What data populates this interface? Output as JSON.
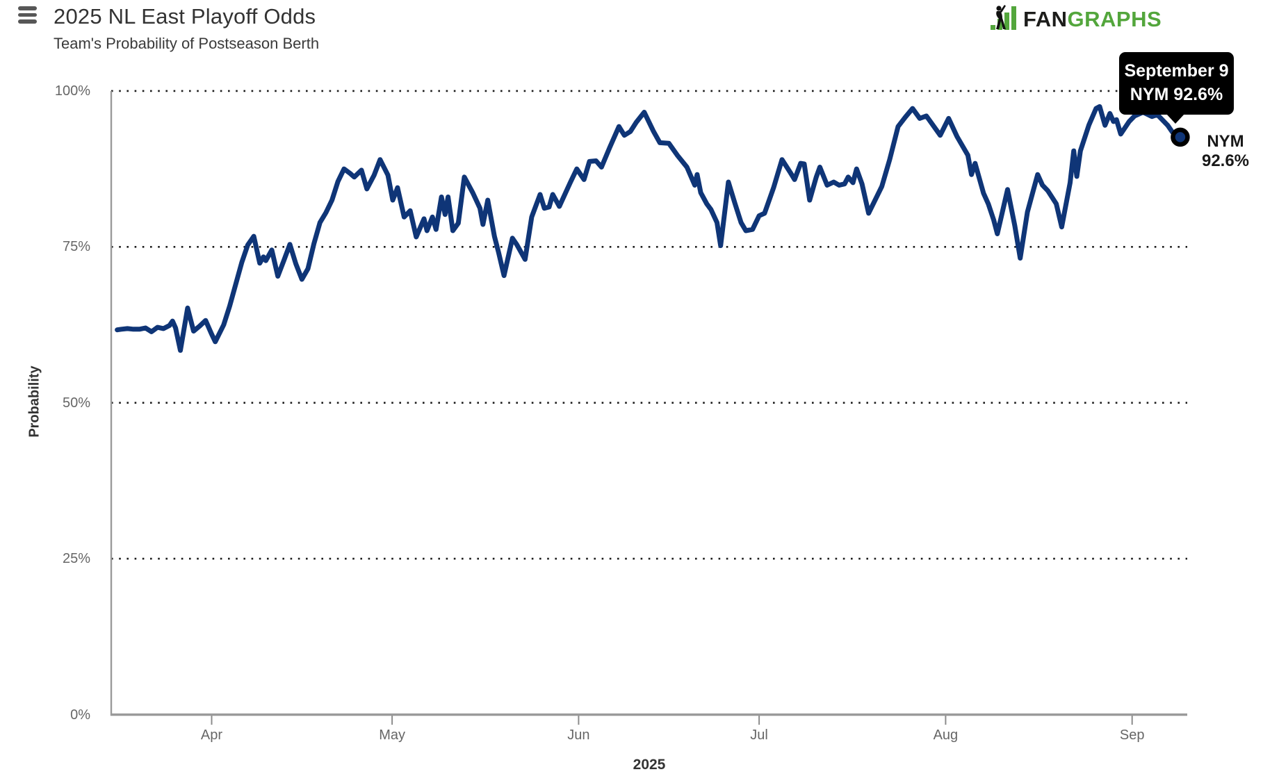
{
  "header": {
    "title": "2025 NL East Playoff Odds",
    "subtitle": "Team's Probability of Postseason Berth"
  },
  "logo": {
    "text_fan": "FAN",
    "text_graphs": "GRAPHS",
    "color_green": "#53a63c",
    "color_black": "#1d1d1b"
  },
  "tooltip": {
    "date": "September 9",
    "value_line": "NYM 92.6%",
    "bg_color": "#000000",
    "text_color": "#ffffff"
  },
  "end_label": {
    "team": "NYM",
    "value": "92.6%"
  },
  "axis": {
    "ylabel": "Probability",
    "xlabel": "2025",
    "yticks": [
      {
        "pct": 100,
        "label": "100%"
      },
      {
        "pct": 75,
        "label": "75%"
      },
      {
        "pct": 50,
        "label": "50%"
      },
      {
        "pct": 25,
        "label": "25%"
      },
      {
        "pct": 0,
        "label": "0%"
      }
    ],
    "xticks": [
      {
        "day": 16,
        "label": "Apr"
      },
      {
        "day": 46,
        "label": "May"
      },
      {
        "day": 77,
        "label": "Jun"
      },
      {
        "day": 107,
        "label": "Jul"
      },
      {
        "day": 138,
        "label": "Aug"
      },
      {
        "day": 169,
        "label": "Sep"
      }
    ]
  },
  "chart_data": {
    "type": "line",
    "title": "2025 NL East Playoff Odds",
    "subtitle": "Team's Probability of Postseason Berth",
    "xlabel": "2025",
    "ylabel": "Probability",
    "ylim": [
      0,
      100
    ],
    "x_unit": "days since 2025-03-16 (day 16 = Apr 1, day 46 = May 1, day 77 = Jun 1, day 107 = Jul 1, day 138 = Aug 1, day 169 = Sep 1, day 177 = Sep 9)",
    "grid": "dotted horizontal gridlines at 25%, 50%, 75%, 100%; solid gray axes at left and bottom",
    "legend": "none (single series, endpoint labeled NYM 92.6%)",
    "line_color": "#0f3577",
    "line_width": 7,
    "marker": {
      "shape": "circle",
      "fill": "#0f3577",
      "ring": "#000000",
      "at_pct": 92.6,
      "at_date": "September 9"
    },
    "series": [
      {
        "name": "NYM",
        "color": "#0f3577",
        "final_date": "September 9",
        "final_value": 92.6,
        "points": [
          [
            0.3,
            61.7
          ],
          [
            1,
            61.8
          ],
          [
            2,
            61.9
          ],
          [
            3,
            61.8
          ],
          [
            4,
            61.8
          ],
          [
            5,
            62.0
          ],
          [
            6,
            61.4
          ],
          [
            7,
            62.1
          ],
          [
            8,
            61.9
          ],
          [
            9,
            62.4
          ],
          [
            9.5,
            63.1
          ],
          [
            10,
            62.0
          ],
          [
            10.8,
            58.4
          ],
          [
            12,
            65.2
          ],
          [
            13,
            61.5
          ],
          [
            14,
            62.3
          ],
          [
            15,
            63.2
          ],
          [
            16,
            61.0
          ],
          [
            16.6,
            59.8
          ],
          [
            18,
            62.5
          ],
          [
            19,
            65.5
          ],
          [
            20,
            69.0
          ],
          [
            21,
            72.5
          ],
          [
            22,
            75.3
          ],
          [
            23,
            76.7
          ],
          [
            24,
            72.4
          ],
          [
            24.6,
            73.4
          ],
          [
            25,
            72.8
          ],
          [
            26,
            74.5
          ],
          [
            27,
            70.3
          ],
          [
            28,
            72.8
          ],
          [
            29,
            75.4
          ],
          [
            30,
            72.3
          ],
          [
            31,
            69.8
          ],
          [
            32,
            71.5
          ],
          [
            33,
            75.5
          ],
          [
            34,
            78.9
          ],
          [
            35,
            80.5
          ],
          [
            36,
            82.5
          ],
          [
            37,
            85.5
          ],
          [
            38,
            87.5
          ],
          [
            39,
            86.8
          ],
          [
            39.7,
            86.2
          ],
          [
            40.9,
            87.3
          ],
          [
            41.8,
            84.3
          ],
          [
            43,
            86.5
          ],
          [
            44,
            89.0
          ],
          [
            45.3,
            86.5
          ],
          [
            46.1,
            82.5
          ],
          [
            46.9,
            84.5
          ],
          [
            48,
            79.8
          ],
          [
            49,
            80.8
          ],
          [
            50,
            76.6
          ],
          [
            51.3,
            79.5
          ],
          [
            51.8,
            77.6
          ],
          [
            52.7,
            79.8
          ],
          [
            53.3,
            77.8
          ],
          [
            54.2,
            83.0
          ],
          [
            54.8,
            80.2
          ],
          [
            55.3,
            83.0
          ],
          [
            56.1,
            77.6
          ],
          [
            57,
            78.8
          ],
          [
            58,
            86.2
          ],
          [
            59.4,
            83.7
          ],
          [
            60.6,
            81.2
          ],
          [
            61.1,
            78.6
          ],
          [
            61.9,
            82.5
          ],
          [
            63,
            76.7
          ],
          [
            63.7,
            74.1
          ],
          [
            64.6,
            70.4
          ],
          [
            66,
            76.4
          ],
          [
            66.7,
            75.4
          ],
          [
            68.1,
            73.0
          ],
          [
            69.2,
            79.8
          ],
          [
            70.6,
            83.4
          ],
          [
            71.3,
            81.2
          ],
          [
            72.1,
            81.4
          ],
          [
            72.7,
            83.4
          ],
          [
            73.8,
            81.5
          ],
          [
            75.6,
            85.3
          ],
          [
            76.7,
            87.5
          ],
          [
            77.9,
            85.8
          ],
          [
            78.8,
            88.7
          ],
          [
            79.9,
            88.8
          ],
          [
            80.8,
            87.8
          ],
          [
            82.2,
            91.0
          ],
          [
            83.7,
            94.3
          ],
          [
            84.6,
            92.9
          ],
          [
            85.6,
            93.5
          ],
          [
            86.6,
            95.0
          ],
          [
            87.9,
            96.6
          ],
          [
            89.4,
            93.6
          ],
          [
            90.5,
            91.7
          ],
          [
            92,
            91.6
          ],
          [
            93.4,
            89.7
          ],
          [
            95,
            87.8
          ],
          [
            96.3,
            84.9
          ],
          [
            96.7,
            86.6
          ],
          [
            97.3,
            83.7
          ],
          [
            98.3,
            81.9
          ],
          [
            99,
            81.0
          ],
          [
            100,
            78.9
          ],
          [
            100.6,
            75.2
          ],
          [
            101.9,
            85.4
          ],
          [
            103,
            81.9
          ],
          [
            104,
            78.9
          ],
          [
            104.8,
            77.6
          ],
          [
            105.9,
            77.8
          ],
          [
            107,
            80.0
          ],
          [
            107.9,
            80.4
          ],
          [
            109.4,
            84.5
          ],
          [
            110.8,
            89.0
          ],
          [
            112.2,
            86.9
          ],
          [
            112.9,
            85.8
          ],
          [
            113.9,
            88.4
          ],
          [
            114.5,
            88.3
          ],
          [
            115.4,
            82.5
          ],
          [
            116.5,
            86.2
          ],
          [
            117.1,
            87.8
          ],
          [
            118.3,
            84.9
          ],
          [
            119.4,
            85.4
          ],
          [
            120.3,
            84.9
          ],
          [
            121.2,
            85.1
          ],
          [
            121.8,
            86.2
          ],
          [
            122.6,
            85.3
          ],
          [
            123.2,
            87.5
          ],
          [
            124.1,
            85.1
          ],
          [
            125.2,
            80.4
          ],
          [
            127.4,
            84.7
          ],
          [
            128.7,
            89.0
          ],
          [
            130.1,
            94.3
          ],
          [
            131.3,
            95.8
          ],
          [
            132.5,
            97.2
          ],
          [
            133.7,
            95.6
          ],
          [
            134.8,
            96.0
          ],
          [
            137.1,
            92.9
          ],
          [
            138.5,
            95.6
          ],
          [
            139.9,
            92.7
          ],
          [
            141.7,
            89.7
          ],
          [
            142.3,
            86.6
          ],
          [
            142.9,
            88.4
          ],
          [
            144.3,
            83.6
          ],
          [
            145.1,
            81.9
          ],
          [
            146,
            79.3
          ],
          [
            146.6,
            77.1
          ],
          [
            148.3,
            84.2
          ],
          [
            149.5,
            78.4
          ],
          [
            150.4,
            73.2
          ],
          [
            151.6,
            80.6
          ],
          [
            152.7,
            84.5
          ],
          [
            153.3,
            86.6
          ],
          [
            154.1,
            84.9
          ],
          [
            155,
            84.0
          ],
          [
            156.4,
            81.9
          ],
          [
            157.3,
            78.2
          ],
          [
            158.7,
            85.3
          ],
          [
            159.3,
            90.4
          ],
          [
            159.8,
            86.3
          ],
          [
            160.4,
            90.4
          ],
          [
            161.8,
            94.5
          ],
          [
            163,
            97.2
          ],
          [
            163.6,
            97.5
          ],
          [
            164.5,
            94.5
          ],
          [
            165.3,
            96.4
          ],
          [
            165.9,
            95.1
          ],
          [
            166.4,
            95.4
          ],
          [
            167.1,
            93.1
          ],
          [
            168.5,
            95.1
          ],
          [
            169.4,
            96.0
          ],
          [
            170.8,
            96.6
          ],
          [
            172.3,
            95.9
          ],
          [
            173.2,
            96.2
          ],
          [
            174.9,
            94.5
          ],
          [
            175.7,
            93.4
          ],
          [
            177,
            92.6
          ]
        ]
      }
    ]
  }
}
